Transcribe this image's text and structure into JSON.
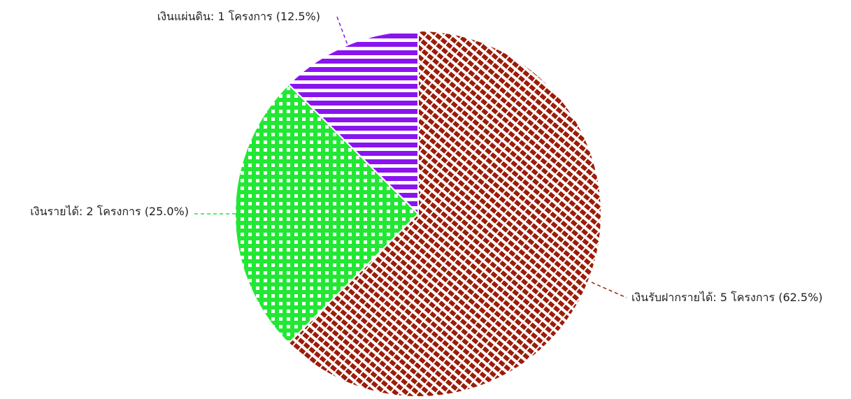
{
  "chart_data": {
    "type": "pie",
    "title": "",
    "unit": "โครงการ",
    "slices": [
      {
        "name": "เงินรับฝากรายได้",
        "value": 5,
        "percent": 62.5,
        "label": "เงินรับฝากรายได้: 5 โครงการ (62.5%)",
        "color": "#9b1c08",
        "pattern": "diagonal-dashes"
      },
      {
        "name": "เงินรายได้",
        "value": 2,
        "percent": 25.0,
        "label": "เงินรายได้: 2 โครงการ (25.0%)",
        "color": "#22e834",
        "pattern": "dots-grid"
      },
      {
        "name": "เงินแผ่นดิน",
        "value": 1,
        "percent": 12.5,
        "label": "เงินแผ่นดิน: 1 โครงการ (12.5%)",
        "color": "#8a14f0",
        "pattern": "horizontal-stripes"
      }
    ],
    "start_angle": "12 o'clock",
    "direction": "clockwise",
    "legend": "none"
  }
}
